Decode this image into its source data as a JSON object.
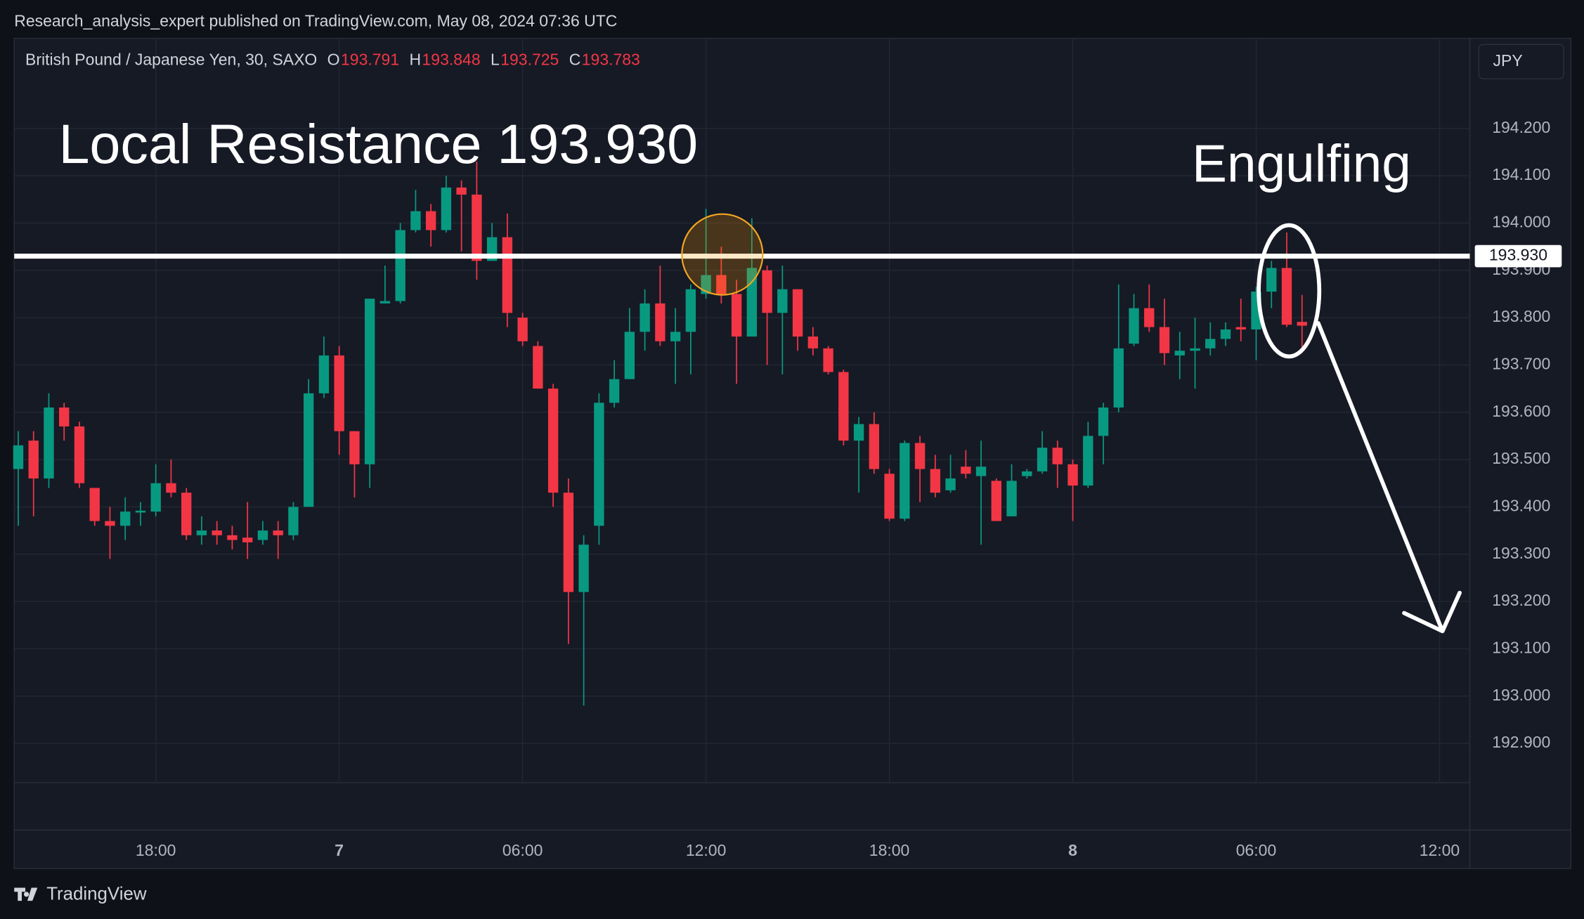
{
  "header": {
    "text": "Research_analysis_expert published on TradingView.com, May 08, 2024 07:36 UTC",
    "brand": "TradingView",
    "currency_button": "JPY"
  },
  "chart_data": {
    "type": "candlestick",
    "symbol": "British Pound / Japanese Yen, 30, SAXO",
    "ohlc_labels": [
      "O",
      "H",
      "L",
      "C"
    ],
    "up_color": "#089981",
    "down_color": "#f23645",
    "grid": true,
    "categories": [
      null,
      null,
      null,
      null,
      null,
      null,
      null,
      null,
      null,
      "18:00",
      null,
      null,
      null,
      null,
      null,
      null,
      null,
      null,
      null,
      null,
      null,
      "7",
      null,
      null,
      null,
      null,
      null,
      null,
      null,
      null,
      null,
      null,
      null,
      "06:00",
      null,
      null,
      null,
      null,
      null,
      null,
      null,
      null,
      null,
      null,
      null,
      "12:00",
      null,
      null,
      null,
      null,
      null,
      null,
      null,
      null,
      null,
      null,
      null,
      "18:00",
      null,
      null,
      null,
      null,
      null,
      null,
      null,
      null,
      null,
      null,
      null,
      "8",
      null,
      null,
      null,
      null,
      null,
      null,
      null,
      null,
      null,
      null,
      null,
      "06:00",
      null,
      null,
      null,
      null,
      null,
      null,
      null,
      null,
      null,
      null,
      null,
      "12:00"
    ],
    "open": [
      193.48,
      193.54,
      193.46,
      193.61,
      193.57,
      193.44,
      193.37,
      193.36,
      193.388,
      193.39,
      193.45,
      193.43,
      193.34,
      193.35,
      193.34,
      193.335,
      193.33,
      193.35,
      193.34,
      193.4,
      193.64,
      193.72,
      193.56,
      193.49,
      193.83,
      193.835,
      193.985,
      194.025,
      193.985,
      194.075,
      194.06,
      193.92,
      193.97,
      193.8,
      193.74,
      193.65,
      193.43,
      193.22,
      193.36,
      193.62,
      193.67,
      193.77,
      193.83,
      193.75,
      193.77,
      193.85,
      193.89,
      193.85,
      193.76,
      193.9,
      193.81,
      193.86,
      193.76,
      193.735,
      193.685,
      193.54,
      193.575,
      193.47,
      193.375,
      193.535,
      193.48,
      193.435,
      193.485,
      193.465,
      193.455,
      193.38,
      193.465,
      193.475,
      193.525,
      193.49,
      193.445,
      193.55,
      193.61,
      193.745,
      193.82,
      193.78,
      193.72,
      193.73,
      193.735,
      193.755,
      193.78,
      193.775,
      193.855,
      193.905,
      193.791,
      null,
      null,
      null,
      null,
      null,
      null,
      null,
      null,
      null
    ],
    "high": [
      193.56,
      193.56,
      193.64,
      193.62,
      193.58,
      193.44,
      193.4,
      193.42,
      193.41,
      193.49,
      193.5,
      193.44,
      193.38,
      193.37,
      193.36,
      193.41,
      193.37,
      193.37,
      193.41,
      193.67,
      193.76,
      193.74,
      193.56,
      193.84,
      193.91,
      194.0,
      194.07,
      194.04,
      194.1,
      194.09,
      194.13,
      194.0,
      194.02,
      193.81,
      193.75,
      193.66,
      193.46,
      193.34,
      193.64,
      193.71,
      193.82,
      193.86,
      193.91,
      193.82,
      193.87,
      194.03,
      193.95,
      193.88,
      194.01,
      193.91,
      193.91,
      193.86,
      193.78,
      193.74,
      193.69,
      193.59,
      193.6,
      193.48,
      193.54,
      193.55,
      193.51,
      193.51,
      193.52,
      193.54,
      193.46,
      193.49,
      193.48,
      193.56,
      193.54,
      193.5,
      193.58,
      193.62,
      193.87,
      193.85,
      193.87,
      193.84,
      193.77,
      193.8,
      193.79,
      193.79,
      193.84,
      193.865,
      193.92,
      193.98,
      193.848,
      null,
      null,
      null,
      null,
      null,
      null,
      null,
      null,
      null
    ],
    "low": [
      193.36,
      193.38,
      193.44,
      193.54,
      193.44,
      193.36,
      193.29,
      193.33,
      193.36,
      193.38,
      193.42,
      193.33,
      193.32,
      193.32,
      193.31,
      193.29,
      193.32,
      193.29,
      193.33,
      193.4,
      193.63,
      193.51,
      193.42,
      193.44,
      193.83,
      193.83,
      193.98,
      193.95,
      193.98,
      193.94,
      193.88,
      193.92,
      193.78,
      193.74,
      193.65,
      193.4,
      193.11,
      192.98,
      193.32,
      193.61,
      193.67,
      193.73,
      193.74,
      193.66,
      193.68,
      193.84,
      193.83,
      193.66,
      193.76,
      193.7,
      193.68,
      193.73,
      193.72,
      193.68,
      193.53,
      193.43,
      193.47,
      193.37,
      193.37,
      193.41,
      193.42,
      193.43,
      193.46,
      193.32,
      193.37,
      193.38,
      193.46,
      193.47,
      193.44,
      193.37,
      193.44,
      193.49,
      193.6,
      193.74,
      193.77,
      193.7,
      193.67,
      193.65,
      193.72,
      193.74,
      193.75,
      193.71,
      193.82,
      193.78,
      193.725,
      null,
      null,
      null,
      null,
      null,
      null,
      null,
      null,
      null
    ],
    "close": [
      193.53,
      193.46,
      193.61,
      193.57,
      193.45,
      193.37,
      193.36,
      193.39,
      193.392,
      193.45,
      193.43,
      193.34,
      193.35,
      193.34,
      193.33,
      193.325,
      193.35,
      193.34,
      193.4,
      193.64,
      193.72,
      193.56,
      193.49,
      193.84,
      193.835,
      193.985,
      194.025,
      193.985,
      194.075,
      194.06,
      193.92,
      193.97,
      193.81,
      193.75,
      193.65,
      193.43,
      193.22,
      193.32,
      193.62,
      193.67,
      193.77,
      193.83,
      193.75,
      193.77,
      193.86,
      193.89,
      193.85,
      193.76,
      193.905,
      193.81,
      193.86,
      193.76,
      193.735,
      193.685,
      193.54,
      193.575,
      193.48,
      193.375,
      193.535,
      193.48,
      193.43,
      193.46,
      193.47,
      193.485,
      193.37,
      193.455,
      193.475,
      193.525,
      193.49,
      193.445,
      193.55,
      193.61,
      193.735,
      193.82,
      193.78,
      193.725,
      193.73,
      193.735,
      193.755,
      193.775,
      193.775,
      193.855,
      193.905,
      193.785,
      193.783,
      null,
      null,
      null,
      null,
      null,
      null,
      null,
      null,
      null
    ],
    "ylim": [
      192.817,
      194.386
    ],
    "yticks": [
      {
        "value": 192.9,
        "label": "192.900"
      },
      {
        "value": 193.0,
        "label": "193.000"
      },
      {
        "value": 193.1,
        "label": "193.100"
      },
      {
        "value": 193.2,
        "label": "193.200"
      },
      {
        "value": 193.3,
        "label": "193.300"
      },
      {
        "value": 193.4,
        "label": "193.400"
      },
      {
        "value": 193.5,
        "label": "193.500"
      },
      {
        "value": 193.6,
        "label": "193.600"
      },
      {
        "value": 193.7,
        "label": "193.700"
      },
      {
        "value": 193.8,
        "label": "193.800"
      },
      {
        "value": 193.9,
        "label": "193.900"
      },
      {
        "value": 194.0,
        "label": "194.000"
      },
      {
        "value": 194.1,
        "label": "194.100"
      },
      {
        "value": 194.2,
        "label": "194.200"
      }
    ],
    "resistance": {
      "value": 193.93,
      "label": "193.930"
    },
    "annotations": [
      "Local Resistance 193.930",
      "Engulfing"
    ]
  }
}
